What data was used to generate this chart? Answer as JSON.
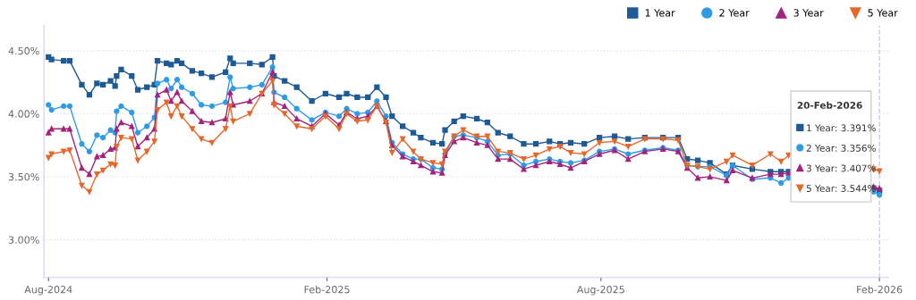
{
  "chart_data": {
    "type": "line",
    "x": [
      "2024-08-20",
      "2024-08-22",
      "2024-08-30",
      "2024-09-03",
      "2024-09-11",
      "2024-09-16",
      "2024-09-21",
      "2024-09-25",
      "2024-09-30",
      "2024-10-03",
      "2024-10-04",
      "2024-10-07",
      "2024-10-14",
      "2024-10-18",
      "2024-10-24",
      "2024-10-29",
      "2024-10-31",
      "2024-11-06",
      "2024-11-09",
      "2024-11-13",
      "2024-11-16",
      "2024-11-23",
      "2024-11-29",
      "2024-12-06",
      "2024-12-15",
      "2024-12-18",
      "2024-12-20",
      "2024-12-31",
      "2025-01-08",
      "2025-01-15",
      "2025-01-16",
      "2025-01-23",
      "2025-01-31",
      "2025-02-10",
      "2025-02-19",
      "2025-02-28",
      "2025-03-05",
      "2025-03-12",
      "2025-03-19",
      "2025-03-25",
      "2025-03-31",
      "2025-04-04",
      "2025-04-11",
      "2025-04-18",
      "2025-04-23",
      "2025-05-01",
      "2025-05-07",
      "2025-05-09",
      "2025-05-15",
      "2025-05-21",
      "2025-05-30",
      "2025-06-06",
      "2025-06-13",
      "2025-06-21",
      "2025-06-30",
      "2025-07-08",
      "2025-07-17",
      "2025-07-24",
      "2025-07-31",
      "2025-08-09",
      "2025-08-19",
      "2025-08-29",
      "2025-09-07",
      "2025-09-18",
      "2025-09-30",
      "2025-10-10",
      "2025-10-16",
      "2025-10-23",
      "2025-10-31",
      "2025-11-11",
      "2025-11-15",
      "2025-11-28",
      "2025-12-10",
      "2025-12-17",
      "2025-12-22",
      "2026-01-19",
      "2026-02-16",
      "2026-02-20"
    ],
    "series": [
      {
        "name": "1 Year",
        "color": "#1d5a96",
        "marker": "square",
        "values": [
          4.45,
          4.43,
          4.42,
          4.42,
          4.23,
          4.15,
          4.24,
          4.23,
          4.26,
          4.22,
          4.3,
          4.35,
          4.3,
          4.19,
          4.21,
          4.23,
          4.42,
          4.4,
          4.39,
          4.42,
          4.4,
          4.34,
          4.32,
          4.29,
          4.33,
          4.44,
          4.4,
          4.4,
          4.39,
          4.45,
          4.3,
          4.26,
          4.21,
          4.1,
          4.16,
          4.13,
          4.16,
          4.13,
          4.13,
          4.21,
          4.13,
          3.98,
          3.9,
          3.85,
          3.81,
          3.77,
          3.76,
          3.87,
          3.94,
          3.98,
          3.96,
          3.93,
          3.85,
          3.82,
          3.76,
          3.76,
          3.78,
          3.76,
          3.77,
          3.76,
          3.81,
          3.82,
          3.8,
          3.81,
          3.81,
          3.81,
          3.64,
          3.63,
          3.61,
          3.52,
          3.59,
          3.56,
          3.54,
          3.54,
          3.54,
          null,
          3.41,
          3.391
        ]
      },
      {
        "name": "2 Year",
        "color": "#2e9be6",
        "marker": "circle",
        "values": [
          4.07,
          4.03,
          4.06,
          4.06,
          3.76,
          3.7,
          3.83,
          3.81,
          3.87,
          3.85,
          4.02,
          4.06,
          4.01,
          3.85,
          3.9,
          3.97,
          4.24,
          4.27,
          4.2,
          4.27,
          4.21,
          4.16,
          4.07,
          4.06,
          4.09,
          4.29,
          4.2,
          4.21,
          4.23,
          4.37,
          4.17,
          4.13,
          4.04,
          3.95,
          4.01,
          3.98,
          4.04,
          4.0,
          4.01,
          4.1,
          3.98,
          3.77,
          3.68,
          3.64,
          3.64,
          3.57,
          3.56,
          3.68,
          3.82,
          3.83,
          3.81,
          3.78,
          3.67,
          3.68,
          3.59,
          3.62,
          3.64,
          3.62,
          3.61,
          3.63,
          3.7,
          3.72,
          3.68,
          3.71,
          3.73,
          3.71,
          3.59,
          3.58,
          3.58,
          3.51,
          3.59,
          3.48,
          3.49,
          3.45,
          3.49,
          null,
          3.38,
          3.356
        ]
      },
      {
        "name": "3 Year",
        "color": "#a3237e",
        "marker": "triangle",
        "values": [
          3.85,
          3.88,
          3.88,
          3.88,
          3.57,
          3.52,
          3.66,
          3.67,
          3.72,
          3.73,
          3.88,
          3.93,
          3.9,
          3.74,
          3.81,
          3.88,
          4.15,
          4.19,
          4.1,
          4.17,
          4.1,
          4.02,
          3.94,
          3.93,
          3.96,
          4.17,
          4.07,
          4.1,
          4.16,
          4.33,
          4.09,
          4.06,
          3.96,
          3.9,
          4.0,
          3.91,
          4.01,
          3.96,
          3.98,
          4.06,
          3.94,
          3.75,
          3.66,
          3.62,
          3.59,
          3.54,
          3.53,
          3.67,
          3.78,
          3.81,
          3.77,
          3.75,
          3.64,
          3.64,
          3.56,
          3.59,
          3.62,
          3.6,
          3.57,
          3.62,
          3.68,
          3.71,
          3.64,
          3.7,
          3.72,
          3.7,
          3.57,
          3.49,
          3.5,
          3.47,
          3.55,
          3.49,
          3.52,
          3.52,
          3.53,
          null,
          3.42,
          3.407
        ]
      },
      {
        "name": "5 Year",
        "color": "#e5682a",
        "marker": "triangle_down",
        "values": [
          3.65,
          3.68,
          3.7,
          3.71,
          3.43,
          3.38,
          3.52,
          3.55,
          3.6,
          3.59,
          3.74,
          3.81,
          3.8,
          3.63,
          3.7,
          3.78,
          4.03,
          4.09,
          3.98,
          4.06,
          3.98,
          3.88,
          3.8,
          3.77,
          3.88,
          4.06,
          3.94,
          4.0,
          4.16,
          4.26,
          4.07,
          4.0,
          3.9,
          3.88,
          3.98,
          3.88,
          4.0,
          3.94,
          3.95,
          4.06,
          3.93,
          3.69,
          3.8,
          3.7,
          3.64,
          3.61,
          3.6,
          3.7,
          3.82,
          3.87,
          3.82,
          3.82,
          3.7,
          3.69,
          3.64,
          3.67,
          3.72,
          3.74,
          3.69,
          3.68,
          3.77,
          3.78,
          3.74,
          3.8,
          3.8,
          3.79,
          3.59,
          3.58,
          3.56,
          3.62,
          3.67,
          3.59,
          3.68,
          3.62,
          3.67,
          null,
          3.56,
          3.544
        ]
      }
    ],
    "xlim": [
      "2024-08-17",
      "2026-02-26"
    ],
    "xticks": [
      {
        "value": "2024-08-20",
        "label": "Aug-2024"
      },
      {
        "value": "2025-02-20",
        "label": "Feb-2025"
      },
      {
        "value": "2025-08-20",
        "label": "Aug-2025"
      },
      {
        "value": "2026-02-20",
        "label": "Feb-2026"
      }
    ],
    "ylim": [
      2.7,
      4.7
    ],
    "yticks": [
      {
        "value": 3.0,
        "label": "3.00%"
      },
      {
        "value": 3.5,
        "label": "3.50%"
      },
      {
        "value": 4.0,
        "label": "4.00%"
      },
      {
        "value": 4.5,
        "label": "4.50%"
      }
    ],
    "grid": "y",
    "legend": "top right",
    "ref_lines": [
      {
        "axis": "x",
        "value": "2026-02-20",
        "color": "#c8c8f0",
        "line_style": "dashed"
      }
    ],
    "annotations": [
      "20-Feb-2026",
      "1 Year: 3.391%",
      "2 Year: 3.356%",
      "3 Year: 3.407%",
      "5 Year: 3.544%"
    ]
  }
}
